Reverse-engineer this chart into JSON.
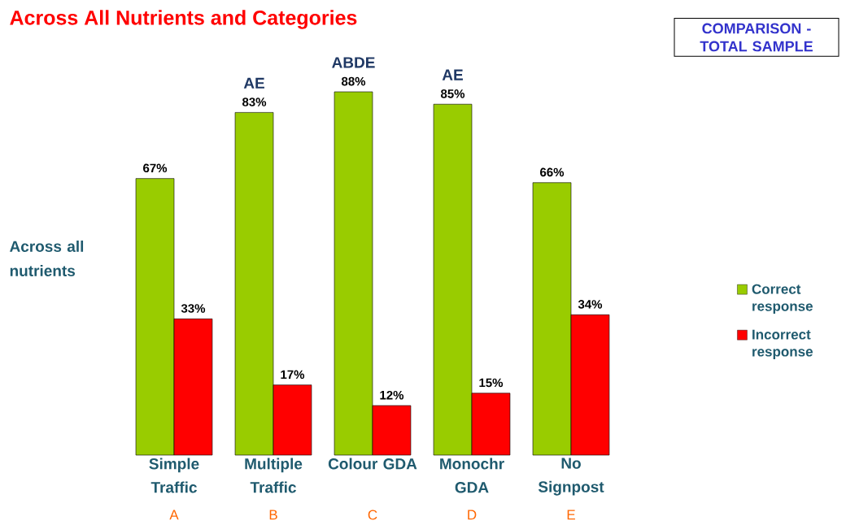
{
  "chart_data": {
    "type": "bar",
    "title": "Across All Nutrients and Categories",
    "subtitle": "COMPARISON - TOTAL SAMPLE",
    "ylabel": "Across all nutrients",
    "categories": [
      "Simple Traffic",
      "Multiple Traffic",
      "Colour GDA",
      "Monochr GDA",
      "No Signpost"
    ],
    "series": [
      {
        "name": "Correct response",
        "color": "#99cc00",
        "values": [
          67,
          83,
          88,
          85,
          66
        ],
        "value_labels": [
          "67%",
          "83%",
          "88%",
          "85%",
          "66%"
        ]
      },
      {
        "name": "Incorrect response",
        "color": "#ff0000",
        "values": [
          33,
          17,
          12,
          15,
          34
        ],
        "value_labels": [
          "33%",
          "17%",
          "12%",
          "15%",
          "34%"
        ]
      }
    ],
    "annotations": [
      {
        "text": "AE",
        "x": "Multiple Traffic",
        "y": 83
      },
      {
        "text": "ABDE",
        "x": "Colour GDA",
        "y": 88
      },
      {
        "text": "AE",
        "x": "Monochr GDA",
        "y": 85
      },
      "A",
      "B",
      "C",
      "D",
      "E"
    ],
    "legend": "right"
  }
}
